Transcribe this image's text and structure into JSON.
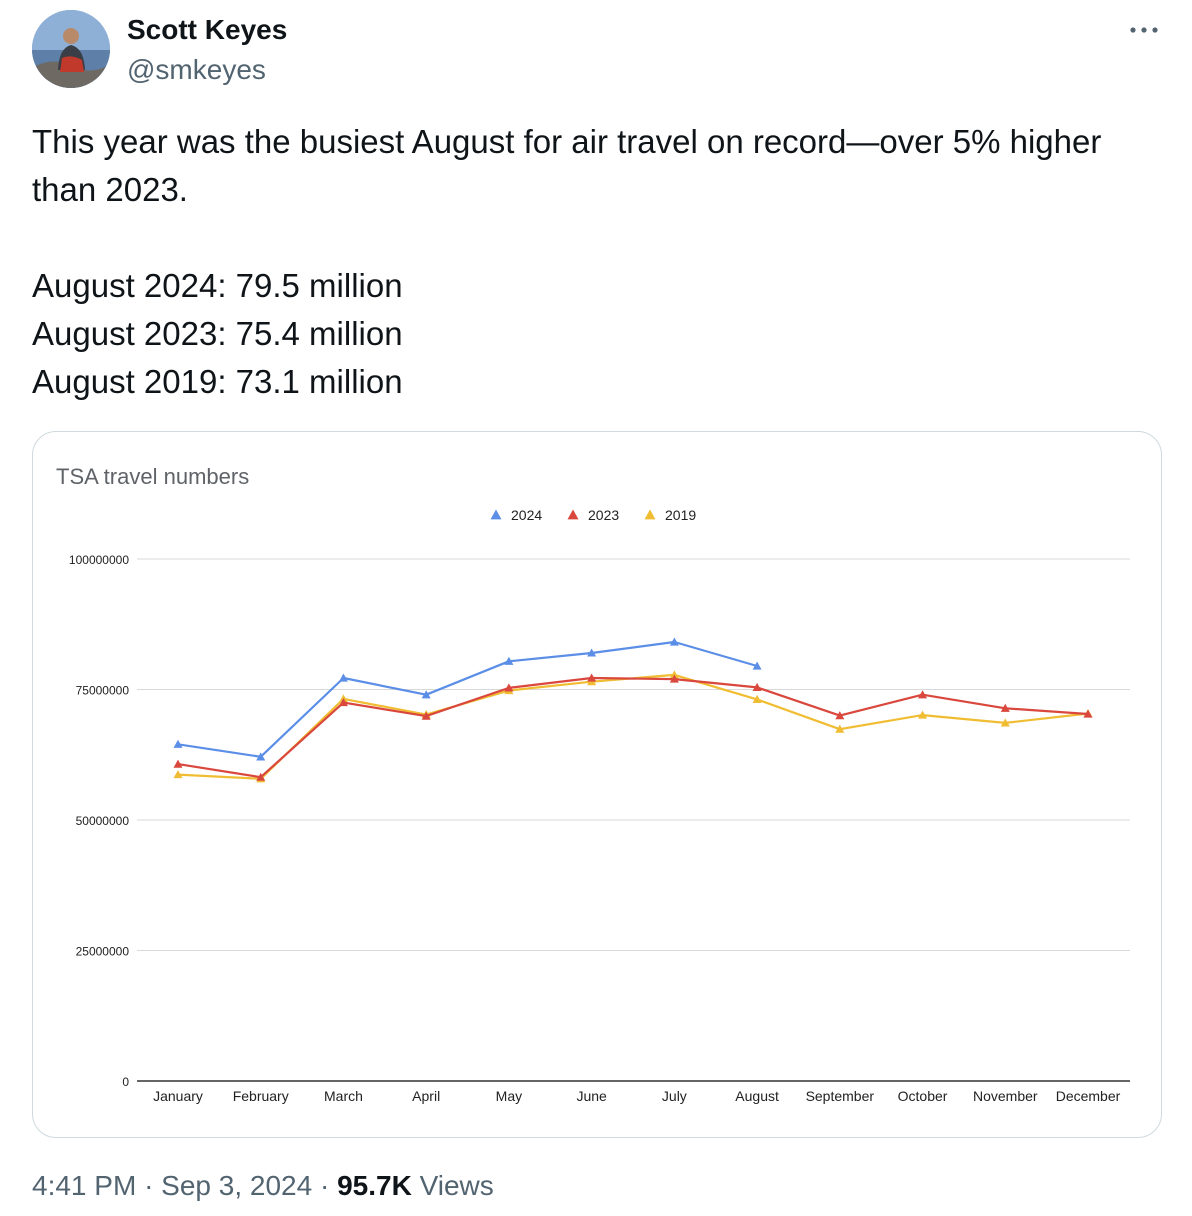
{
  "author": {
    "name": "Scott Keyes",
    "handle": "@smkeyes"
  },
  "more_icon": "more-horizontal-icon",
  "tweet": {
    "lines": [
      "This year was the busiest August for air travel on record—over 5% higher",
      "than 2023.",
      "August 2024: 79.5 million",
      "August 2023: 75.4 million",
      "August 2019: 73.1 million"
    ]
  },
  "meta": {
    "time": "4:41 PM",
    "separator": "·",
    "date": "Sep 3, 2024",
    "views_count": "95.7K",
    "views_label": "Views"
  },
  "chart_data": {
    "type": "line",
    "title": "TSA travel numbers",
    "categories": [
      "January",
      "February",
      "March",
      "April",
      "May",
      "June",
      "July",
      "August",
      "September",
      "October",
      "November",
      "December"
    ],
    "series": [
      {
        "name": "2024",
        "color": "#5b8ee6",
        "values": [
          64500000,
          62100000,
          77200000,
          74000000,
          80400000,
          82000000,
          84100000,
          79500000,
          null,
          null,
          null,
          null
        ]
      },
      {
        "name": "2023",
        "color": "#d9473d",
        "values": [
          60700000,
          58200000,
          72500000,
          69900000,
          75300000,
          77200000,
          77000000,
          75400000,
          70000000,
          74000000,
          71400000,
          70300000
        ]
      },
      {
        "name": "2019",
        "color": "#f0bd32",
        "values": [
          58700000,
          57900000,
          73200000,
          70200000,
          74800000,
          76500000,
          77800000,
          73100000,
          67400000,
          70100000,
          68600000,
          70400000
        ]
      }
    ],
    "y_ticks": [
      "100000000",
      "75000000",
      "50000000",
      "25000000",
      "0"
    ],
    "ylim": [
      0,
      100000000
    ],
    "legend_position": "top-center",
    "grid": true,
    "marker": "triangle"
  }
}
